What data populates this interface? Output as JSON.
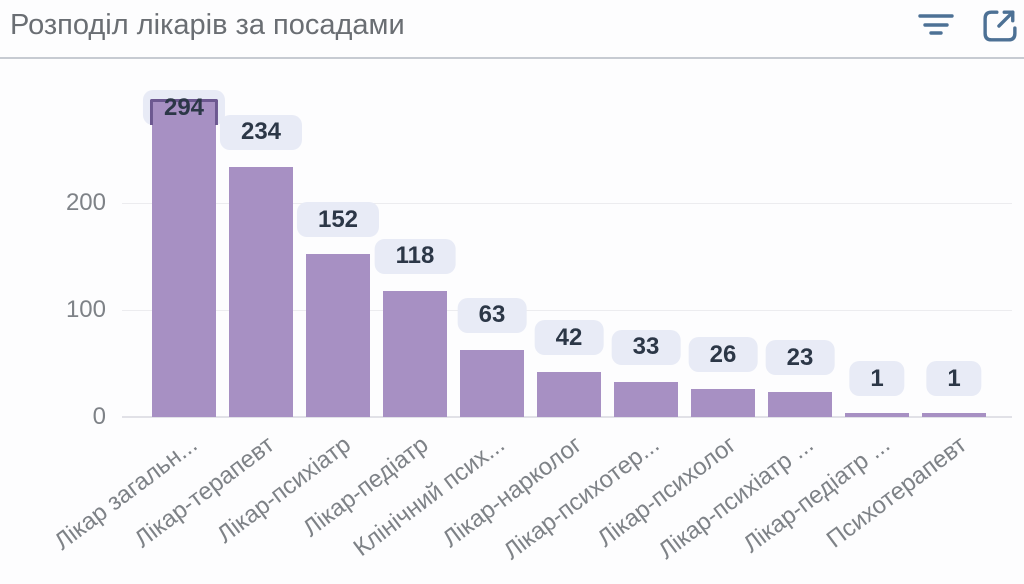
{
  "header": {
    "title": "Розподіл лікарів за посадами",
    "filter_icon": "filter-icon",
    "expand_icon": "expand-icon"
  },
  "colors": {
    "bar": "#a790c3",
    "bar_border_emphasis": "#6c5890",
    "pill_bg": "#e8ebf6",
    "pill_text": "#2c3747",
    "axis_text": "#7e8287",
    "title_text": "#6a6e73",
    "icon": "#4d7195",
    "gridline": "#ececef",
    "baseline": "#e1e1e7"
  },
  "chart_data": {
    "type": "bar",
    "title": "Розподіл лікарів за посадами",
    "categories": [
      "Лікар загальн...",
      "Лікар-терапевт",
      "Лікар-психіатр",
      "Лікар-педіатр",
      "Клінічний псих...",
      "Лікар-нарколог",
      "Лікар-психотер...",
      "Лікар-психолог",
      "Лікар-психіатр ...",
      "Лікар-педіатр ...",
      "Психотерапевт"
    ],
    "values": [
      294,
      234,
      152,
      118,
      63,
      42,
      33,
      26,
      23,
      1,
      1
    ],
    "xlabel": "",
    "ylabel": "",
    "y_ticks": [
      0,
      100,
      200
    ],
    "ylim": [
      0,
      300
    ],
    "grid": true,
    "legend": null,
    "data_labels": true,
    "x_labels_rotated": true
  }
}
